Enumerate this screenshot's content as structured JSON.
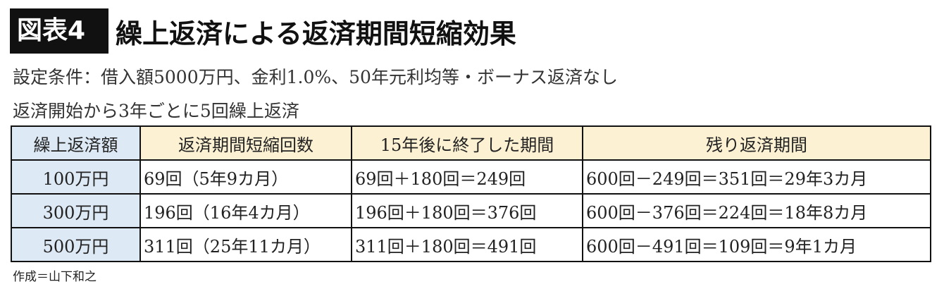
{
  "header": {
    "badge": "図表4",
    "title": "繰上返済による返済期間短縮効果"
  },
  "conditions": [
    "設定条件：借入額5000万円、金利1.0%、50年元利均等・ボーナス返済なし",
    "返済開始から3年ごとに5回繰上返済"
  ],
  "table": {
    "headers": [
      "繰上返済額",
      "返済期間短縮回数",
      "15年後に終了した期間",
      "残り返済期間"
    ],
    "rows": [
      [
        "100万円",
        "69回（5年9カ月）",
        "69回＋180回＝249回",
        "600回－249回＝351回＝29年3カ月"
      ],
      [
        "300万円",
        "196回（16年4カ月）",
        "196回＋180回＝376回",
        "600回－376回＝224回＝18年8カ月"
      ],
      [
        "500万円",
        "311回（25年11カ月）",
        "311回＋180回＝491回",
        "600回－491回＝109回＝9年1カ月"
      ]
    ]
  },
  "credit": "作成＝山下和之",
  "colors": {
    "first_column": "#dde9f5",
    "header": "#fdf1d3"
  }
}
